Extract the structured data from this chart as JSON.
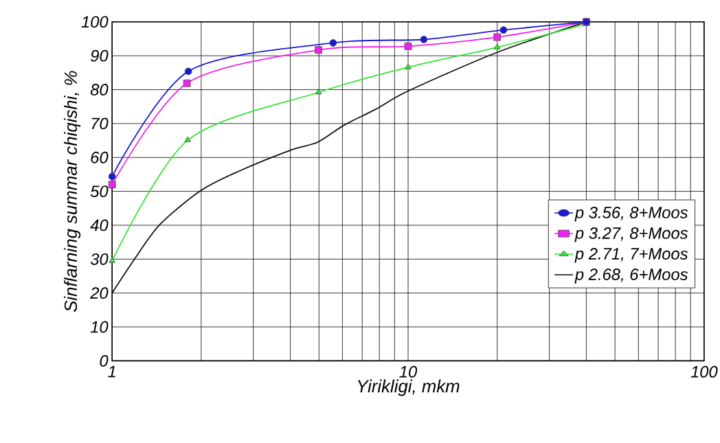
{
  "chart_data": {
    "type": "line",
    "xlabel": "Yirikligi, mkm",
    "ylabel": "Sinflarning summar chiqishi, %",
    "log": "x",
    "grid": true,
    "legend": "right",
    "xlim": [
      1,
      100
    ],
    "xticks": [
      1,
      10,
      100
    ],
    "ylim": [
      0,
      100
    ],
    "yticks": [
      0,
      10,
      20,
      30,
      40,
      50,
      60,
      70,
      80,
      90,
      100
    ],
    "series": [
      {
        "name": "p 3.56, 8+Moos",
        "color": "#1a1ad6",
        "marker": "circle",
        "x": [
          1,
          1.81,
          5.58,
          11.3,
          21,
          40
        ],
        "values": [
          54.4,
          85.4,
          93.8,
          94.8,
          97.6,
          100
        ]
      },
      {
        "name": "p 3.27, 8+Moos",
        "color": "#ee22ee",
        "marker": "square",
        "x": [
          1,
          1.79,
          4.98,
          10,
          20,
          40
        ],
        "values": [
          52,
          81.9,
          91.7,
          92.8,
          95.5,
          100
        ]
      },
      {
        "name": "p 2.71, 7+Moos",
        "color": "#33e633",
        "marker": "triangle",
        "x": [
          1,
          1.8,
          4.98,
          10,
          20,
          40
        ],
        "values": [
          29.5,
          65.1,
          79.2,
          86.6,
          92.5,
          99.4
        ]
      },
      {
        "name": "p 2.68, 6+Moos",
        "color": "#111111",
        "marker": "none",
        "x": [
          1,
          1.18,
          1.45,
          2,
          2.69,
          4,
          4.95,
          6.07,
          7.77,
          10,
          20,
          40
        ],
        "values": [
          20,
          29.5,
          40.2,
          50.3,
          56,
          62.1,
          64.5,
          69.5,
          74.2,
          79.6,
          91,
          100
        ]
      }
    ]
  }
}
